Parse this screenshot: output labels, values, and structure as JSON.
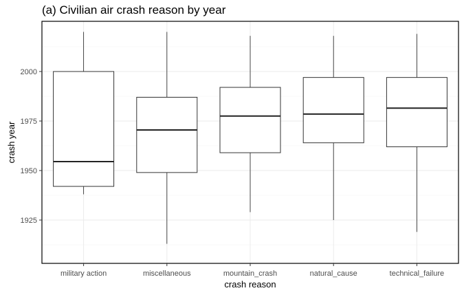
{
  "chart_data": {
    "type": "boxplot",
    "title": "(a) Civilian air crash reason by year",
    "xlabel": "crash reason",
    "ylabel": "crash year",
    "ylim": [
      1900,
      2025
    ],
    "yticks": [
      1925,
      1950,
      1975,
      2000
    ],
    "grid": true,
    "categories": [
      "military action",
      "miscellaneous",
      "mountain_crash",
      "natural_cause",
      "technical_failure"
    ],
    "boxes": [
      {
        "category": "military action",
        "min": 1938,
        "q1": 1942,
        "median": 1954.5,
        "q3": 2000,
        "max": 2020
      },
      {
        "category": "miscellaneous",
        "min": 1913,
        "q1": 1949,
        "median": 1970.5,
        "q3": 1987,
        "max": 2020
      },
      {
        "category": "mountain_crash",
        "min": 1929,
        "q1": 1959,
        "median": 1977.5,
        "q3": 1992,
        "max": 2018
      },
      {
        "category": "natural_cause",
        "min": 1925,
        "q1": 1964,
        "median": 1978.5,
        "q3": 1997,
        "max": 2018
      },
      {
        "category": "technical_failure",
        "min": 1919,
        "q1": 1962,
        "median": 1981.5,
        "q3": 1997,
        "max": 2019
      }
    ]
  }
}
